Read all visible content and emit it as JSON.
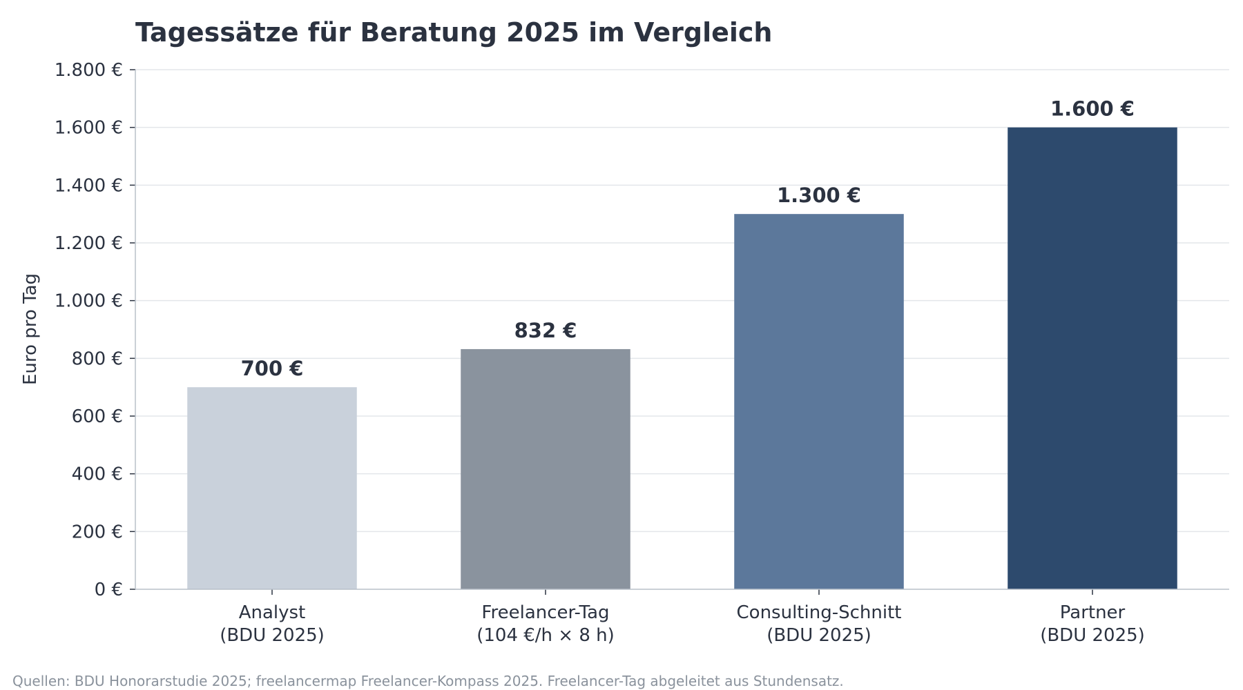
{
  "chart_data": {
    "type": "bar",
    "title": "Tagessätze für Beratung 2025 im Vergleich",
    "ylabel": "Euro pro Tag",
    "xlabel": "",
    "ylim": [
      0,
      1800
    ],
    "yticks": [
      0,
      200,
      400,
      600,
      800,
      1000,
      1200,
      1400,
      1600,
      1800
    ],
    "ytick_labels": [
      "0 €",
      "200 €",
      "400 €",
      "600 €",
      "800 €",
      "1.000 €",
      "1.200 €",
      "1.400 €",
      "1.600 €",
      "1.800 €"
    ],
    "grid": true,
    "categories": [
      [
        "Analyst",
        "(BDU 2025)"
      ],
      [
        "Freelancer-Tag",
        "(104 €/h × 8 h)"
      ],
      [
        "Consulting-Schnitt",
        "(BDU 2025)"
      ],
      [
        "Partner",
        "(BDU 2025)"
      ]
    ],
    "values": [
      700,
      832,
      1300,
      1600
    ],
    "value_labels": [
      "700 €",
      "832 €",
      "1.300 €",
      "1.600 €"
    ],
    "colors": [
      "#c9d1db",
      "#8a939e",
      "#5c789b",
      "#2d4a6d"
    ],
    "source": "Quellen: BDU Honorarstudie 2025; freelancermap Freelancer-Kompass 2025. Freelancer-Tag abgeleitet aus Stundensatz."
  }
}
